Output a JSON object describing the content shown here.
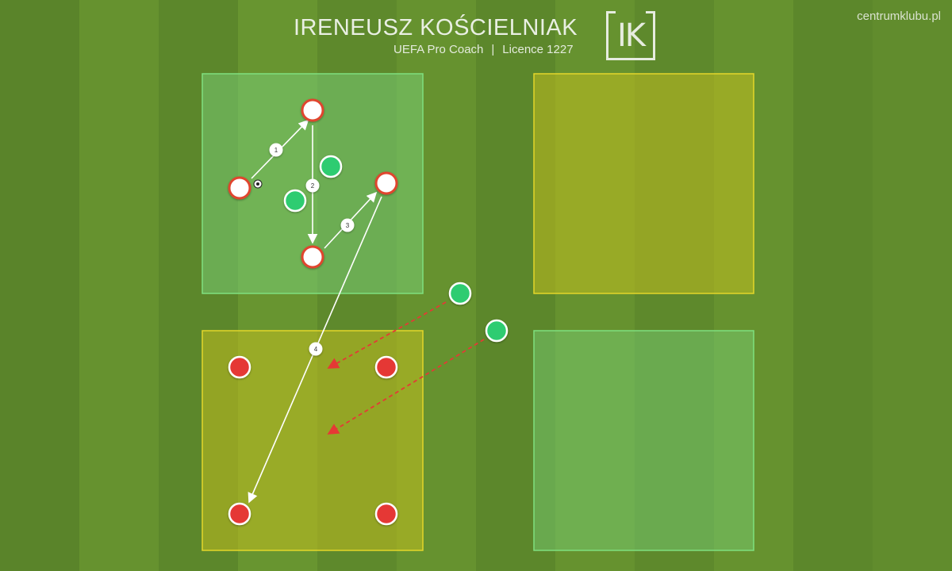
{
  "header": {
    "coach_name": "IRENEUSZ KOŚCIELNIAK",
    "role": "UEFA Pro Coach",
    "separator": "|",
    "licence": "Licence 1227",
    "logo_text": "IK",
    "site": "centrumklubu.pl"
  },
  "colors": {
    "grass_dark": "#5a842a",
    "grass_light": "#66922f",
    "zone_green": "#6fcf6f",
    "zone_yellow": "#b9b52a",
    "player_red": "#e53935",
    "player_green": "#2ecc71",
    "player_white": "#ffffff",
    "pass_line": "#ffffff",
    "run_line": "#e53935"
  },
  "icons": [
    "ball-icon"
  ],
  "zones": [
    {
      "name": "zone-top-left",
      "color": "green"
    },
    {
      "name": "zone-top-right",
      "color": "yellow"
    },
    {
      "name": "zone-bottom-left",
      "color": "yellow"
    },
    {
      "name": "zone-bottom-right",
      "color": "green"
    }
  ],
  "players": [
    {
      "name": "attacker-1",
      "kind": "white-red"
    },
    {
      "name": "attacker-2",
      "kind": "white-red"
    },
    {
      "name": "attacker-3",
      "kind": "white-red"
    },
    {
      "name": "attacker-4",
      "kind": "white-red"
    },
    {
      "name": "defender-1",
      "kind": "green"
    },
    {
      "name": "defender-2",
      "kind": "green"
    },
    {
      "name": "defender-3",
      "kind": "green"
    },
    {
      "name": "defender-4",
      "kind": "green"
    },
    {
      "name": "target-1",
      "kind": "red"
    },
    {
      "name": "target-2",
      "kind": "red"
    },
    {
      "name": "target-3",
      "kind": "red"
    },
    {
      "name": "target-4",
      "kind": "red"
    }
  ],
  "passes": [
    {
      "name": "pass-1",
      "label": "1"
    },
    {
      "name": "pass-2",
      "label": "2"
    },
    {
      "name": "pass-3",
      "label": "3"
    },
    {
      "name": "pass-4",
      "label": "4"
    }
  ],
  "runs": [
    {
      "name": "run-1"
    },
    {
      "name": "run-2"
    }
  ]
}
